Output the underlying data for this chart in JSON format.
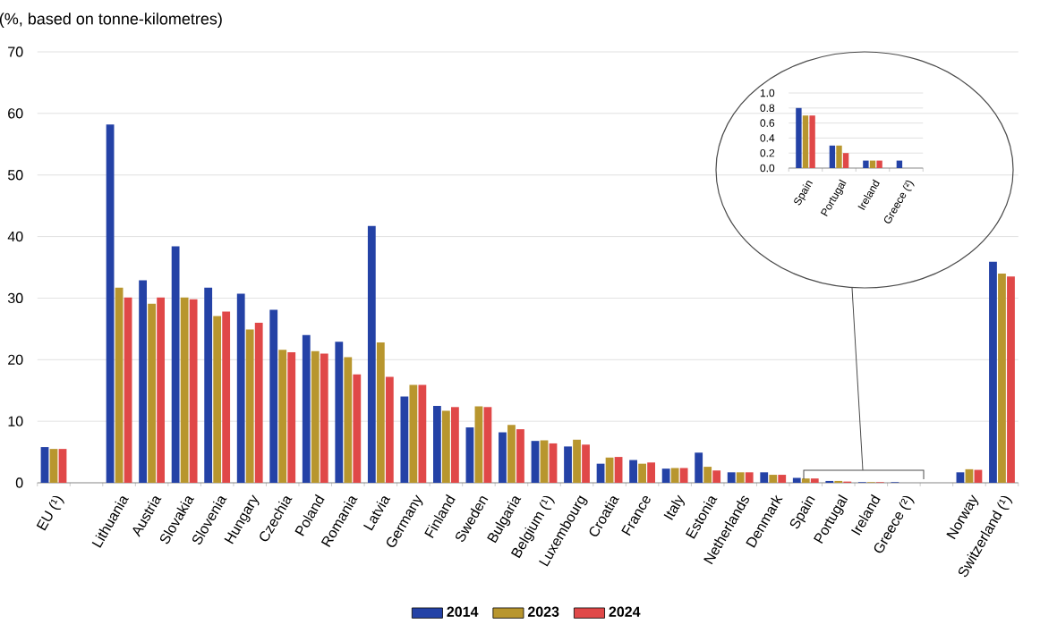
{
  "chart_data": [
    {
      "type": "bar",
      "title": "(%, based on tonne-kilometres)",
      "categories": [
        "EU (¹)",
        null,
        "Lithuania",
        "Austria",
        "Slovakia",
        "Slovenia",
        "Hungary",
        "Czechia",
        "Poland",
        "Romania",
        "Latvia",
        "Germany",
        "Finland",
        "Sweden",
        "Bulgaria",
        "Belgium (¹)",
        "Luxembourg",
        "Croatia",
        "France",
        "Italy",
        "Estonia",
        "Netherlands",
        "Denmark",
        "Spain",
        "Portugal",
        "Ireland",
        "Greece (²)",
        null,
        "Norway",
        "Switzerland (¹)"
      ],
      "series": [
        {
          "name": "2014",
          "color": "#2442a6",
          "values": [
            5.8,
            null,
            58.2,
            32.9,
            38.4,
            31.7,
            30.7,
            28.1,
            24.0,
            22.9,
            41.7,
            14.0,
            12.5,
            9.0,
            8.2,
            6.8,
            5.9,
            3.1,
            3.7,
            2.3,
            4.9,
            1.7,
            1.7,
            0.8,
            0.3,
            0.1,
            0.1,
            null,
            1.7,
            35.9
          ]
        },
        {
          "name": "2023",
          "color": "#b8962e",
          "values": [
            5.5,
            null,
            31.7,
            29.1,
            30.1,
            27.1,
            24.9,
            21.6,
            21.4,
            20.4,
            22.8,
            15.9,
            11.7,
            12.4,
            9.4,
            6.9,
            7.0,
            4.1,
            3.1,
            2.4,
            2.6,
            1.7,
            1.3,
            0.7,
            0.3,
            0.1,
            null,
            null,
            2.2,
            34.0
          ]
        },
        {
          "name": "2024",
          "color": "#e04848",
          "values": [
            5.5,
            null,
            30.1,
            30.1,
            29.8,
            27.8,
            26.0,
            21.2,
            21.0,
            17.6,
            17.2,
            15.9,
            12.3,
            12.3,
            8.7,
            6.4,
            6.2,
            4.2,
            3.3,
            2.4,
            2.0,
            1.7,
            1.3,
            0.7,
            0.2,
            0.1,
            null,
            null,
            2.1,
            33.5
          ]
        }
      ],
      "ylim": [
        0,
        70
      ],
      "yticks": [
        0,
        10,
        20,
        30,
        40,
        50,
        60,
        70
      ],
      "grid": "y",
      "legend": "bottom"
    },
    {
      "type": "bar",
      "categories": [
        "Spain",
        "Portugal",
        "Ireland",
        "Greece (²)"
      ],
      "series": [
        {
          "color": "#2442a6",
          "values": [
            0.8,
            0.3,
            0.1,
            0.1
          ]
        },
        {
          "color": "#b8962e",
          "values": [
            0.7,
            0.3,
            0.1,
            null
          ]
        },
        {
          "color": "#e04848",
          "values": [
            0.7,
            0.2,
            0.1,
            null
          ]
        }
      ],
      "ylim": [
        0,
        1.0
      ],
      "yticks": [
        {
          "value": 0,
          "label": "0.0"
        },
        {
          "value": 0.2,
          "label": "0.2"
        },
        {
          "value": 0.4,
          "label": "0.4"
        },
        {
          "value": 0.6,
          "label": "0.6"
        },
        {
          "value": 0.8,
          "label": "0.8"
        },
        {
          "value": 1.0,
          "label": "1.0"
        }
      ],
      "grid": "y"
    }
  ]
}
